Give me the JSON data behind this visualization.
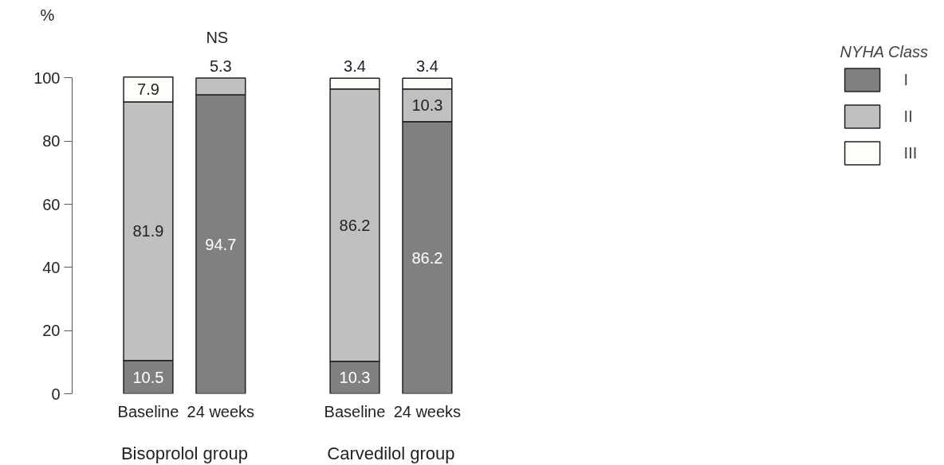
{
  "chart_data": {
    "type": "bar",
    "stacked": true,
    "ylabel": "%",
    "legend_title": "NYHA Class",
    "legend": "right",
    "categories": [
      "Baseline",
      "24 weeks",
      "Baseline",
      "24 weeks"
    ],
    "series": [
      {
        "name": "I",
        "color": "#808080",
        "values": [
          10.5,
          94.7,
          10.3,
          86.2
        ],
        "value_labels": [
          "10.5",
          "94.7",
          "10.3",
          "86.2"
        ]
      },
      {
        "name": "II",
        "color": "#c0c0c0",
        "values": [
          81.9,
          5.3,
          86.2,
          10.3
        ],
        "value_labels": [
          "81.9",
          "5.3",
          "86.2",
          "10.3"
        ]
      },
      {
        "name": "III",
        "color": "#fffdfa",
        "values": [
          7.9,
          null,
          3.4,
          3.4
        ],
        "value_labels": [
          "7.9",
          null,
          "3.4",
          "3.4"
        ]
      }
    ],
    "ylim": [
      0,
      100
    ],
    "yticks": [
      0,
      20,
      40,
      60,
      80,
      100
    ],
    "grid": false,
    "annotations": [
      "NS",
      "Bisoprolol group",
      "Carvedilol group"
    ]
  }
}
